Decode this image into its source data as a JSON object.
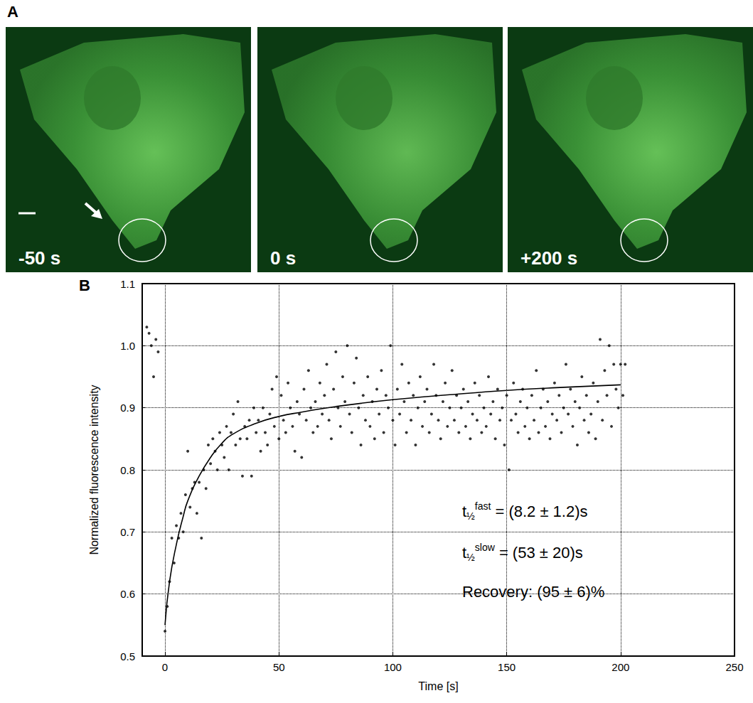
{
  "panel_a": {
    "label": "A",
    "images": [
      {
        "time": "-50 s"
      },
      {
        "time": "0 s"
      },
      {
        "time": "+200 s"
      }
    ]
  },
  "chart_data": {
    "type": "scatter",
    "label": "B",
    "x_label": "Time [s]",
    "y_label": "Normalized fluorescence intensity",
    "xlim": [
      -10,
      250
    ],
    "xticks": [
      0,
      50,
      100,
      150,
      200,
      250
    ],
    "ylim": [
      0.5,
      1.1
    ],
    "yticks": [
      0.5,
      0.6,
      0.7,
      0.8,
      0.9,
      {
        "value": 1,
        "label": "1.0"
      },
      1.1
    ],
    "grid": true,
    "series": [
      {
        "type": "scatter",
        "color": "#000000",
        "marker": "circle",
        "x": [
          -8,
          -7,
          -6,
          -5,
          -4,
          -3,
          0,
          1,
          2,
          3,
          4,
          5,
          6,
          7,
          8,
          9,
          10,
          11,
          12,
          13,
          14,
          15,
          16,
          17,
          18,
          19,
          20,
          21,
          22,
          23,
          24,
          25,
          26,
          27,
          28,
          29,
          30,
          31,
          32,
          33,
          34,
          35,
          36,
          37,
          38,
          39,
          40,
          41,
          42,
          43,
          44,
          45,
          46,
          47,
          48,
          49,
          50,
          51,
          52,
          53,
          54,
          55,
          56,
          57,
          58,
          59,
          60,
          61,
          62,
          63,
          64,
          65,
          66,
          67,
          68,
          69,
          70,
          71,
          72,
          73,
          74,
          75,
          76,
          77,
          78,
          79,
          80,
          81,
          82,
          83,
          84,
          85,
          86,
          87,
          88,
          89,
          90,
          91,
          92,
          93,
          94,
          95,
          96,
          97,
          98,
          99,
          100,
          101,
          102,
          103,
          104,
          105,
          106,
          107,
          108,
          109,
          110,
          111,
          112,
          113,
          114,
          115,
          116,
          117,
          118,
          119,
          120,
          121,
          122,
          123,
          124,
          125,
          126,
          127,
          128,
          129,
          130,
          131,
          132,
          133,
          134,
          135,
          136,
          137,
          138,
          139,
          140,
          141,
          142,
          143,
          144,
          145,
          146,
          147,
          148,
          149,
          150,
          151,
          152,
          153,
          154,
          155,
          156,
          157,
          158,
          159,
          160,
          161,
          162,
          163,
          164,
          165,
          166,
          167,
          168,
          169,
          170,
          171,
          172,
          173,
          174,
          175,
          176,
          177,
          178,
          179,
          180,
          181,
          182,
          183,
          184,
          185,
          186,
          187,
          188,
          189,
          190,
          191,
          192,
          193,
          194,
          195,
          196,
          197,
          198,
          199,
          200,
          201,
          202
        ],
        "values": [
          1.03,
          1.02,
          1.0,
          0.95,
          1.01,
          0.99,
          0.54,
          0.58,
          0.62,
          0.69,
          0.65,
          0.71,
          0.69,
          0.73,
          0.7,
          0.76,
          0.83,
          0.74,
          0.77,
          0.78,
          0.73,
          0.78,
          0.69,
          0.8,
          0.77,
          0.84,
          0.81,
          0.85,
          0.83,
          0.8,
          0.86,
          0.84,
          0.82,
          0.87,
          0.8,
          0.86,
          0.89,
          0.84,
          0.91,
          0.85,
          0.79,
          0.87,
          0.85,
          0.88,
          0.79,
          0.9,
          0.86,
          0.88,
          0.83,
          0.9,
          0.86,
          0.84,
          0.89,
          0.93,
          0.87,
          0.95,
          0.85,
          0.92,
          0.88,
          0.86,
          0.94,
          0.9,
          0.87,
          0.83,
          0.91,
          0.89,
          0.82,
          0.93,
          0.88,
          0.96,
          0.9,
          0.86,
          0.91,
          0.87,
          0.94,
          0.89,
          0.92,
          0.97,
          0.88,
          0.85,
          0.93,
          0.99,
          0.9,
          0.87,
          0.95,
          0.91,
          1.0,
          0.89,
          0.86,
          0.94,
          0.98,
          0.9,
          0.84,
          0.92,
          0.88,
          0.95,
          0.87,
          0.91,
          0.85,
          0.93,
          0.89,
          0.96,
          0.86,
          0.92,
          0.9,
          1.0,
          0.88,
          0.84,
          0.93,
          0.89,
          0.97,
          0.91,
          0.86,
          0.94,
          0.88,
          0.92,
          0.84,
          0.9,
          0.95,
          0.87,
          0.91,
          0.93,
          0.86,
          0.89,
          0.97,
          0.92,
          0.88,
          0.85,
          0.91,
          0.94,
          0.87,
          0.9,
          0.96,
          0.88,
          0.92,
          0.86,
          0.9,
          0.93,
          0.87,
          0.91,
          0.85,
          0.89,
          0.94,
          0.88,
          0.92,
          0.86,
          0.9,
          0.87,
          0.95,
          0.89,
          0.91,
          0.85,
          0.93,
          0.88,
          0.9,
          0.84,
          0.92,
          0.8,
          0.88,
          0.94,
          0.89,
          0.86,
          0.91,
          0.93,
          0.87,
          0.9,
          0.85,
          0.92,
          0.88,
          0.96,
          0.86,
          0.9,
          0.93,
          0.87,
          0.91,
          0.85,
          0.89,
          0.94,
          0.88,
          0.92,
          0.86,
          0.9,
          0.97,
          0.89,
          0.93,
          0.87,
          0.91,
          0.84,
          0.9,
          0.95,
          0.88,
          0.92,
          0.86,
          0.89,
          0.94,
          0.85,
          0.91,
          1.01,
          0.88,
          0.96,
          0.92,
          1.0,
          0.87,
          0.97,
          0.93,
          0.9,
          0.97,
          0.92,
          0.97
        ]
      },
      {
        "type": "line",
        "color": "#000000",
        "line_style": "solid",
        "x": [
          0,
          2,
          5,
          8,
          10,
          15,
          20,
          25,
          30,
          40,
          50,
          60,
          75,
          100,
          125,
          150,
          175,
          200
        ],
        "values": [
          0.55,
          0.62,
          0.68,
          0.725,
          0.75,
          0.79,
          0.82,
          0.843,
          0.858,
          0.875,
          0.886,
          0.893,
          0.902,
          0.913,
          0.921,
          0.928,
          0.933,
          0.937
        ]
      }
    ],
    "annotations": [
      {
        "symbol": "t",
        "sub": "½",
        "sup": "fast",
        "text": " = (8.2 ± 1.2)s"
      },
      {
        "symbol": "t",
        "sub": "½",
        "sup": "slow",
        "text": " = (53 ± 20)s"
      },
      {
        "text": "Recovery: (95 ± 6)%"
      }
    ]
  }
}
